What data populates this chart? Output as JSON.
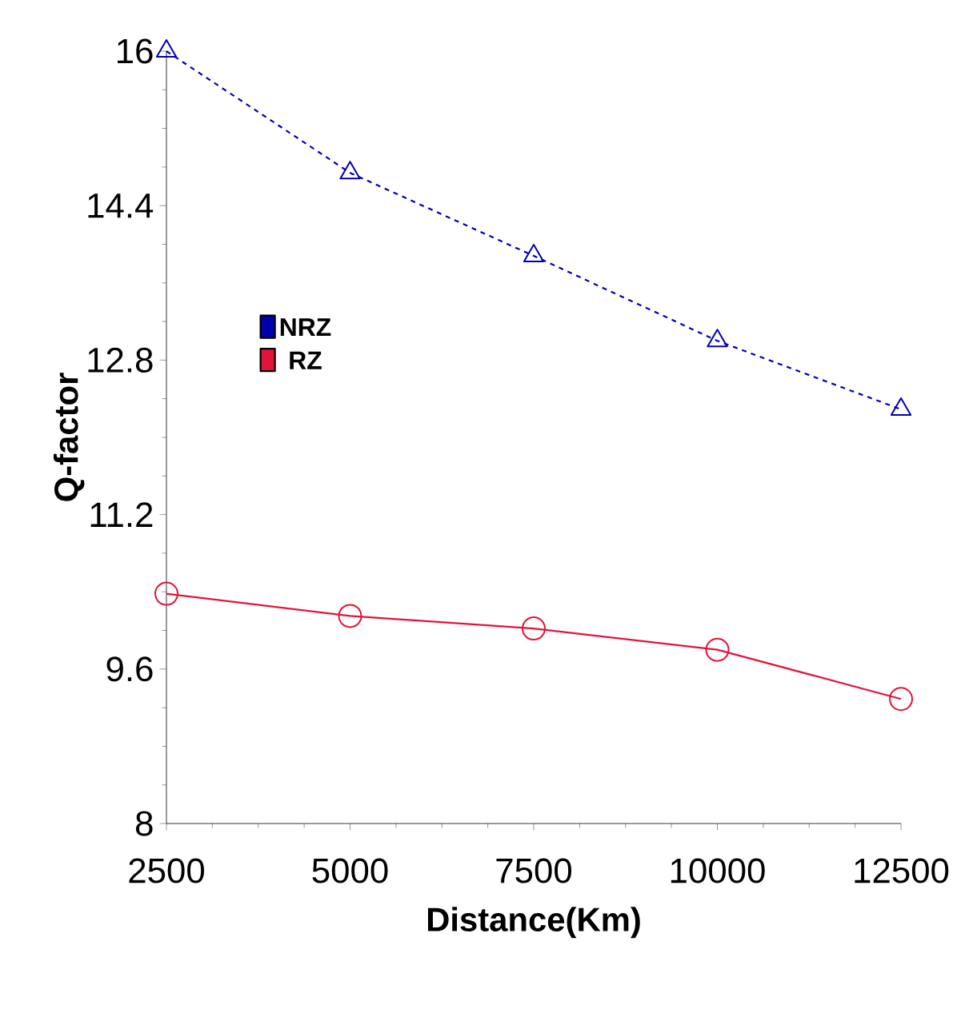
{
  "chart_data": {
    "type": "line",
    "xlabel": "Distance(Km)",
    "ylabel": "Q-factor",
    "x": [
      2500,
      5000,
      7500,
      10000,
      12500
    ],
    "xlim": [
      2500,
      12500
    ],
    "xticks": [
      2500,
      5000,
      7500,
      10000,
      12500
    ],
    "ylim": [
      8,
      16
    ],
    "yticks": [
      8,
      9.6,
      11.2,
      12.8,
      14.4,
      16
    ],
    "grid": false,
    "legend": "left",
    "series": [
      {
        "name": "NRZ",
        "color": "#0000b0",
        "values": [
          16.0,
          14.74,
          13.88,
          13.0,
          12.29
        ],
        "marker": "triangle",
        "line_style": "dashed"
      },
      {
        "name": "RZ",
        "color": "#e0143c",
        "values": [
          10.38,
          10.15,
          10.02,
          9.8,
          9.29
        ],
        "marker": "circle",
        "line_style": "solid"
      }
    ]
  }
}
